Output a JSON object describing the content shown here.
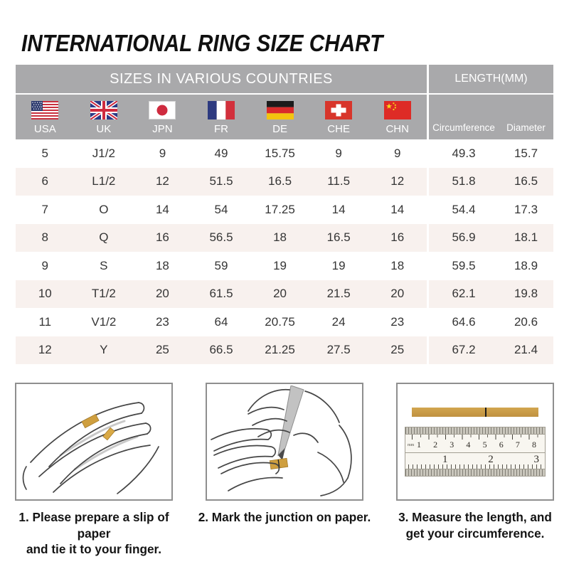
{
  "title": "INTERNATIONAL RING SIZE CHART",
  "table": {
    "group_headers": [
      "SIZES IN VARIOUS COUNTRIES",
      "LENGTH(MM)"
    ],
    "countries": [
      {
        "code": "USA",
        "flag": "usa-flag-icon"
      },
      {
        "code": "UK",
        "flag": "uk-flag-icon"
      },
      {
        "code": "JPN",
        "flag": "japan-flag-icon"
      },
      {
        "code": "FR",
        "flag": "france-flag-icon"
      },
      {
        "code": "DE",
        "flag": "germany-flag-icon"
      },
      {
        "code": "CHE",
        "flag": "switzerland-flag-icon"
      },
      {
        "code": "CHN",
        "flag": "china-flag-icon"
      }
    ],
    "length_columns": [
      "Circumference",
      "Diameter"
    ],
    "rows": [
      [
        "5",
        "J1/2",
        "9",
        "49",
        "15.75",
        "9",
        "9",
        "49.3",
        "15.7"
      ],
      [
        "6",
        "L1/2",
        "12",
        "51.5",
        "16.5",
        "11.5",
        "12",
        "51.8",
        "16.5"
      ],
      [
        "7",
        "O",
        "14",
        "54",
        "17.25",
        "14",
        "14",
        "54.4",
        "17.3"
      ],
      [
        "8",
        "Q",
        "16",
        "56.5",
        "18",
        "16.5",
        "16",
        "56.9",
        "18.1"
      ],
      [
        "9",
        "S",
        "18",
        "59",
        "19",
        "19",
        "18",
        "59.5",
        "18.9"
      ],
      [
        "10",
        "T1/2",
        "20",
        "61.5",
        "20",
        "21.5",
        "20",
        "62.1",
        "19.8"
      ],
      [
        "11",
        "V1/2",
        "23",
        "64",
        "20.75",
        "24",
        "23",
        "64.6",
        "20.6"
      ],
      [
        "12",
        "Y",
        "25",
        "66.5",
        "21.25",
        "27.5",
        "25",
        "67.2",
        "21.4"
      ]
    ]
  },
  "steps": [
    {
      "illustration": "hand-with-paper-slip-icon",
      "caption": "1. Please prepare a slip of paper\nand tie it to your finger."
    },
    {
      "illustration": "pen-marking-finger-icon",
      "caption": "2. Mark the junction on paper."
    },
    {
      "illustration": "ruler-measure-icon",
      "caption": "3. Measure the length, and\nget your circumference."
    }
  ],
  "ruler": {
    "unit_label": "mm",
    "cm_numbers": [
      "1",
      "2",
      "3",
      "4",
      "5",
      "6",
      "7",
      "8"
    ],
    "inch_numbers": [
      "1",
      "2",
      "3"
    ]
  },
  "colors": {
    "header_bg": "#a9a9ab",
    "row_stripe": "#f8f1ee",
    "paper_gold": "#c79a3e",
    "card_border": "#8f8f8f",
    "text_dark": "#141414"
  },
  "chart_data": {
    "type": "table",
    "title": "INTERNATIONAL RING SIZE CHART",
    "column_groups": [
      "SIZES IN VARIOUS COUNTRIES",
      "LENGTH(MM)"
    ],
    "columns": [
      "USA",
      "UK",
      "JPN",
      "FR",
      "DE",
      "CHE",
      "CHN",
      "Circumference",
      "Diameter"
    ],
    "rows": [
      [
        "5",
        "J1/2",
        "9",
        "49",
        "15.75",
        "9",
        "9",
        "49.3",
        "15.7"
      ],
      [
        "6",
        "L1/2",
        "12",
        "51.5",
        "16.5",
        "11.5",
        "12",
        "51.8",
        "16.5"
      ],
      [
        "7",
        "O",
        "14",
        "54",
        "17.25",
        "14",
        "14",
        "54.4",
        "17.3"
      ],
      [
        "8",
        "Q",
        "16",
        "56.5",
        "18",
        "16.5",
        "16",
        "56.9",
        "18.1"
      ],
      [
        "9",
        "S",
        "18",
        "59",
        "19",
        "19",
        "18",
        "59.5",
        "18.9"
      ],
      [
        "10",
        "T1/2",
        "20",
        "61.5",
        "20",
        "21.5",
        "20",
        "62.1",
        "19.8"
      ],
      [
        "11",
        "V1/2",
        "23",
        "64",
        "20.75",
        "24",
        "23",
        "64.6",
        "20.6"
      ],
      [
        "12",
        "Y",
        "25",
        "66.5",
        "21.25",
        "27.5",
        "25",
        "67.2",
        "21.4"
      ]
    ]
  }
}
